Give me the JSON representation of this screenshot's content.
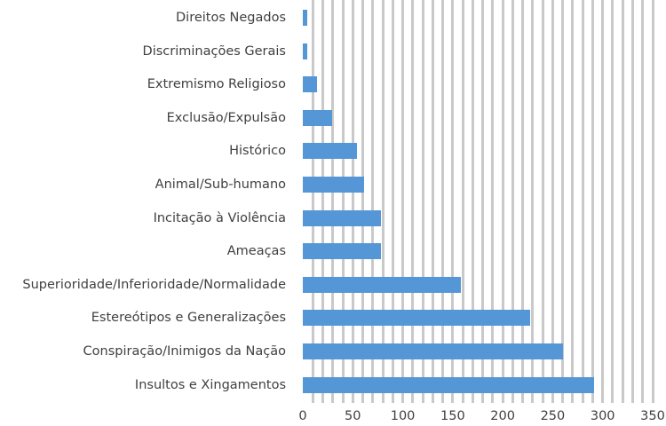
{
  "chart_data": {
    "type": "bar",
    "orientation": "horizontal",
    "title": "",
    "xlabel": "",
    "ylabel": "",
    "xlim": [
      0,
      350
    ],
    "x_ticks": [
      "0",
      "50",
      "100",
      "150",
      "200",
      "250",
      "300",
      "350"
    ],
    "grid": true,
    "grid_step": 10,
    "legend": null,
    "bar_color": "#5596d6",
    "categories": [
      "Direitos Negados",
      "Discriminações Gerais",
      "Extremismo Religioso",
      "Exclusão/Expulsão",
      "Histórico",
      "Animal/Sub-humano",
      "Incitação à Violência",
      "Ameaças",
      "Superioridade/Inferioridade/Normalidade",
      "Estereótipos e Generalizações",
      "Conspiração/Inimigos da Nação",
      "Insultos e Xingamentos"
    ],
    "values": [
      4,
      4,
      14,
      29,
      54,
      61,
      78,
      78,
      158,
      227,
      260,
      291
    ]
  }
}
